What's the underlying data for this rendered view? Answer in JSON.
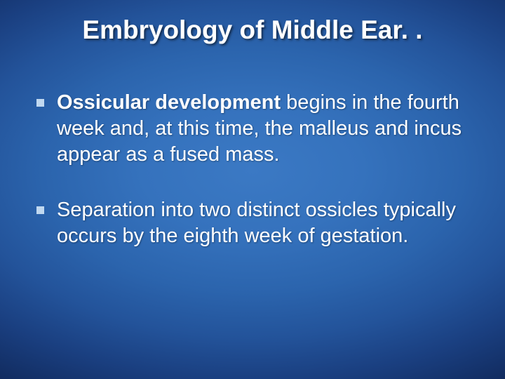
{
  "slide": {
    "title": "Embryology of Middle Ear. .",
    "title_fontsize": 37,
    "title_color": "#ffffff",
    "background": {
      "center_color": "#3b79c4",
      "edge_color": "#051230"
    },
    "body_fontsize": 29,
    "body_lineheight": 1.28,
    "body_color": "#ffffff",
    "bullet_color": "#c0d8f0",
    "bullet_size": 11,
    "bullets": [
      {
        "bold_prefix": "Ossicular development",
        "rest": " begins in the fourth week and, at this time, the malleus and incus appear as a fused mass.",
        "margin_bottom": 42
      },
      {
        "bold_prefix": "",
        "rest": "  Separation into two distinct ossicles typically occurs by the eighth week of gestation.",
        "margin_bottom": 0
      }
    ]
  }
}
